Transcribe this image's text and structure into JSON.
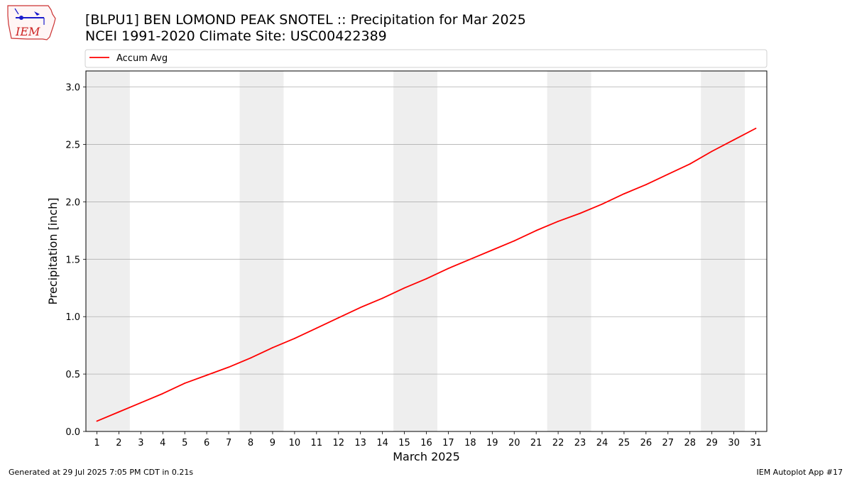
{
  "header": {
    "title_line1": "[BLPU1] BEN LOMOND PEAK SNOTEL :: Precipitation for Mar 2025",
    "title_line2": "NCEI 1991-2020 Climate Site: USC00422389"
  },
  "logo": {
    "text": "IEM"
  },
  "footer": {
    "generated": "Generated at 29 Jul 2025 7:05 PM CDT in 0.21s",
    "app": "IEM Autoplot App #17"
  },
  "colors": {
    "line": "#ff0000",
    "weekend_shade": "#eeeeee",
    "grid": "#b0b0b0",
    "logo_outline": "#cc3333",
    "logo_mark": "#1a1acc"
  },
  "chart_data": {
    "type": "line",
    "xlabel": "March 2025",
    "ylabel": "Precipitation [inch]",
    "ylim": [
      0,
      3.14
    ],
    "xlim": [
      0.5,
      31.5
    ],
    "y_ticks": [
      "0.0",
      "0.5",
      "1.0",
      "1.5",
      "2.0",
      "2.5",
      "3.0"
    ],
    "x_ticks": [
      "1",
      "2",
      "3",
      "4",
      "5",
      "6",
      "7",
      "8",
      "9",
      "10",
      "11",
      "12",
      "13",
      "14",
      "15",
      "16",
      "17",
      "18",
      "19",
      "20",
      "21",
      "22",
      "23",
      "24",
      "25",
      "26",
      "27",
      "28",
      "29",
      "30",
      "31"
    ],
    "grid": "horizontal",
    "legend": {
      "position": "top",
      "entries": [
        "Accum Avg"
      ]
    },
    "shaded_weekends": [
      [
        1,
        2
      ],
      [
        8,
        9
      ],
      [
        15,
        16
      ],
      [
        22,
        23
      ],
      [
        29,
        30
      ]
    ],
    "series": [
      {
        "name": "Accum Avg",
        "x": [
          1,
          2,
          3,
          4,
          5,
          6,
          7,
          8,
          9,
          10,
          11,
          12,
          13,
          14,
          15,
          16,
          17,
          18,
          19,
          20,
          21,
          22,
          23,
          24,
          25,
          26,
          27,
          28,
          29,
          30,
          31
        ],
        "values": [
          0.09,
          0.17,
          0.25,
          0.33,
          0.42,
          0.49,
          0.56,
          0.64,
          0.73,
          0.81,
          0.9,
          0.99,
          1.08,
          1.16,
          1.25,
          1.33,
          1.42,
          1.5,
          1.58,
          1.66,
          1.75,
          1.83,
          1.9,
          1.98,
          2.07,
          2.15,
          2.24,
          2.33,
          2.44,
          2.54,
          2.64
        ]
      }
    ]
  }
}
